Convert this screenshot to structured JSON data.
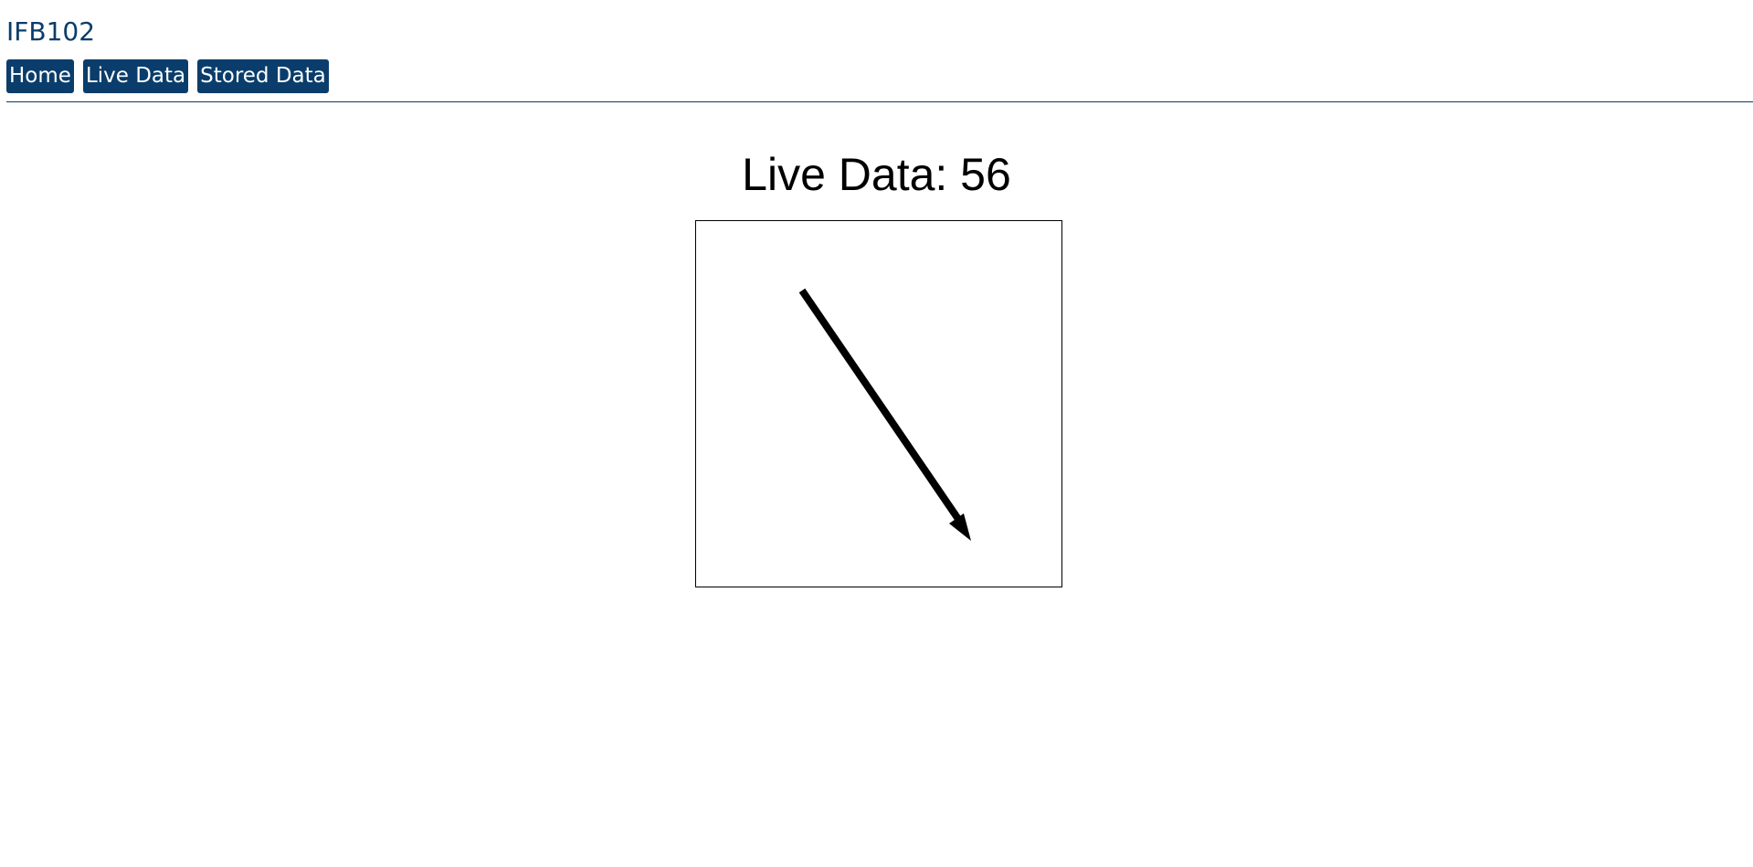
{
  "header": {
    "title": "IFB102",
    "brand_color": "#0a3d6b"
  },
  "nav": {
    "items": [
      {
        "label": "Home"
      },
      {
        "label": "Live Data"
      },
      {
        "label": "Stored Data"
      }
    ]
  },
  "main": {
    "heading_prefix": "Live Data:",
    "live_value": "56",
    "heading": "Live Data: 56",
    "direction_indicator": {
      "icon": "arrow-icon",
      "color": "#000000"
    }
  }
}
